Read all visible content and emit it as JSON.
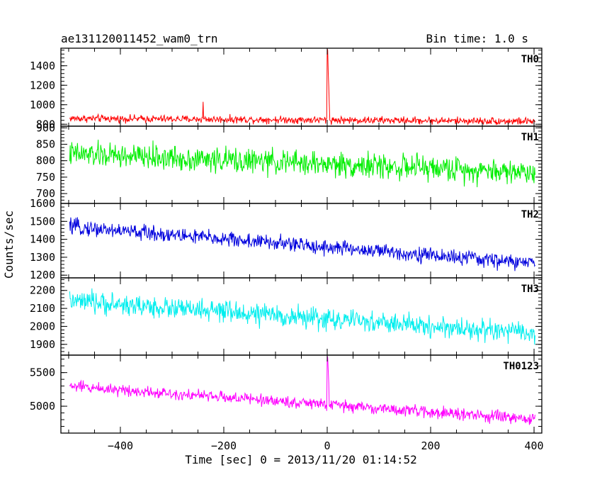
{
  "header": {
    "title": "ae131120011452_wam0_trn",
    "bin_time": "Bin time: 1.0 s"
  },
  "chart_data": {
    "type": "line",
    "title": "ae131120011452_wam0_trn",
    "subtitle": "Bin time: 1.0 s",
    "xlabel": "Time [sec] 0 = 2013/11/20 01:14:52",
    "ylabel": "Counts/sec",
    "xlim": [
      -515,
      415
    ],
    "x_ticks": [
      -400,
      -200,
      0,
      200,
      400
    ],
    "x_tick_labels": [
      "−400",
      "−200",
      "0",
      "200",
      "400"
    ],
    "bin_time_s": 1.0,
    "x_range_data": [
      -498,
      402
    ],
    "grid": false,
    "legend": "none",
    "panels": [
      {
        "name": "TH0",
        "color": "#ff0000",
        "ylim": [
          780,
          1580
        ],
        "y_ticks": [
          800,
          1000,
          1200,
          1400
        ],
        "y_tick_labels": [
          "800",
          "1000",
          "1200",
          "1400"
        ],
        "start_level": 860,
        "end_level": 830,
        "noise": 35,
        "spikes": [
          {
            "t": 0,
            "value": 1575
          },
          {
            "t": 1,
            "value": 1560
          },
          {
            "t": 2,
            "value": 1320
          },
          {
            "t": 3,
            "value": 1190
          },
          {
            "t": 4,
            "value": 1010
          },
          {
            "t": -240,
            "value": 1030
          }
        ]
      },
      {
        "name": "TH1",
        "color": "#00ee00",
        "ylim": [
          670,
          905
        ],
        "y_ticks": [
          700,
          750,
          800,
          850,
          900
        ],
        "y_tick_labels": [
          "700",
          "750",
          "800",
          "850",
          "900"
        ],
        "start_level": 820,
        "end_level": 765,
        "noise": 35,
        "spikes": []
      },
      {
        "name": "TH2",
        "color": "#0000dd",
        "ylim": [
          1185,
          1600
        ],
        "y_ticks": [
          1200,
          1300,
          1400,
          1500,
          1600
        ],
        "y_tick_labels": [
          "1200",
          "1300",
          "1400",
          "1500",
          "1600"
        ],
        "start_level": 1470,
        "end_level": 1265,
        "noise": 40,
        "spikes": []
      },
      {
        "name": "TH3",
        "color": "#00eeee",
        "ylim": [
          1840,
          2270
        ],
        "y_ticks": [
          1900,
          2000,
          2100,
          2200
        ],
        "y_tick_labels": [
          "1900",
          "2000",
          "2100",
          "2200"
        ],
        "start_level": 2140,
        "end_level": 1960,
        "noise": 55,
        "spikes": []
      },
      {
        "name": "TH0123",
        "color": "#ff00ff",
        "ylim": [
          4600,
          5760
        ],
        "y_ticks": [
          5000,
          5500
        ],
        "y_tick_labels": [
          "5000",
          "5500"
        ],
        "start_level": 5300,
        "end_level": 4800,
        "noise": 80,
        "spikes": [
          {
            "t": 0,
            "value": 5750
          },
          {
            "t": 1,
            "value": 5720
          },
          {
            "t": 2,
            "value": 5520
          },
          {
            "t": 3,
            "value": 5350
          }
        ]
      }
    ]
  }
}
